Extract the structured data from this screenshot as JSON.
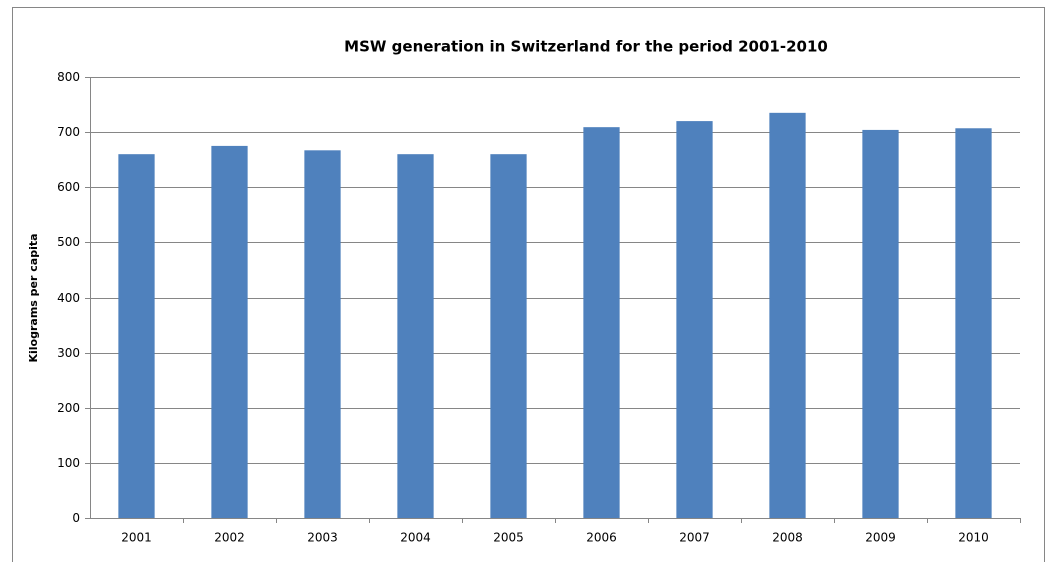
{
  "chart_data": {
    "type": "bar",
    "title": "MSW generation in Switzerland for the period 2001-2010",
    "y_label": "Kilograms per capita",
    "categories": [
      "2001",
      "2002",
      "2003",
      "2004",
      "2005",
      "2006",
      "2007",
      "2008",
      "2009",
      "2010"
    ],
    "values": [
      660,
      675,
      667,
      660,
      660,
      709,
      720,
      735,
      704,
      707
    ],
    "color": "#4f81bd",
    "ylim": [
      0,
      800
    ],
    "yticks": [
      0,
      100,
      200,
      300,
      400,
      500,
      600,
      700,
      800
    ],
    "grid": true
  }
}
